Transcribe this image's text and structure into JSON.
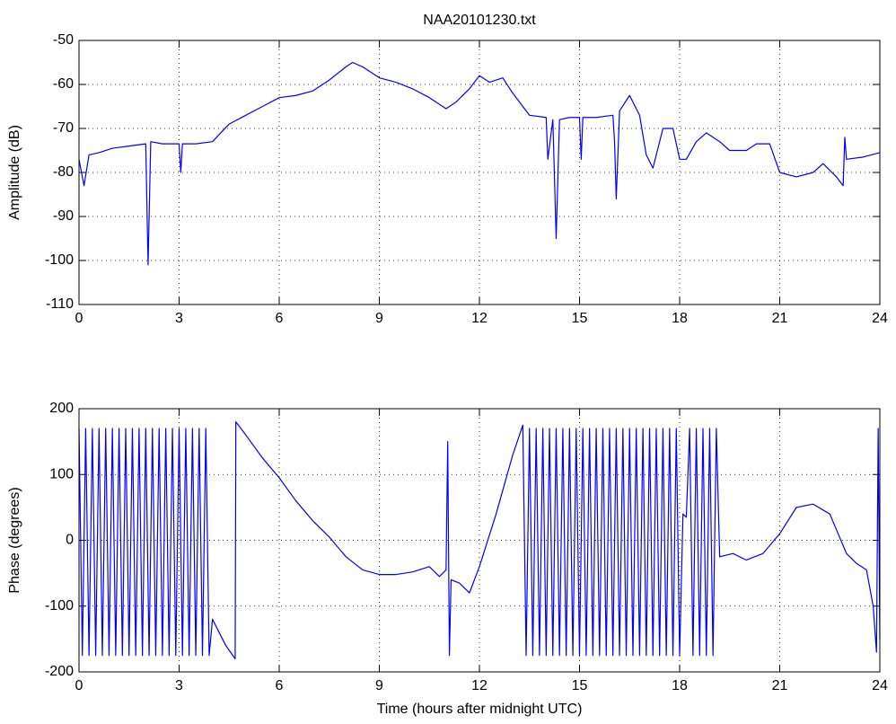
{
  "chart_data": [
    {
      "type": "line",
      "title": "NAA20101230.txt",
      "y_label": "Amplitude (dB)",
      "color": "#0000ff",
      "grid": true,
      "xlim": [
        0,
        24
      ],
      "xticks": [
        0,
        3,
        6,
        9,
        12,
        15,
        18,
        21,
        24
      ],
      "ylim": [
        -110,
        -50
      ],
      "yticks": [
        -110,
        -100,
        -90,
        -80,
        -70,
        -60,
        -50
      ],
      "x": [
        0,
        0.15,
        0.3,
        0.6,
        1.0,
        1.5,
        2.0,
        2.07,
        2.15,
        2.5,
        3.0,
        3.05,
        3.1,
        3.5,
        4.0,
        4.5,
        5.0,
        5.5,
        6.0,
        6.5,
        7.0,
        7.5,
        8.0,
        8.2,
        8.5,
        9.0,
        9.5,
        10.0,
        10.5,
        11.0,
        11.3,
        11.7,
        12.0,
        12.3,
        12.7,
        13.0,
        13.5,
        14.0,
        14.05,
        14.2,
        14.3,
        14.4,
        14.7,
        15.0,
        15.05,
        15.1,
        15.5,
        16.0,
        16.05,
        16.1,
        16.2,
        16.5,
        16.8,
        17.0,
        17.2,
        17.5,
        17.8,
        18.0,
        18.2,
        18.5,
        18.8,
        19.2,
        19.5,
        20.0,
        20.3,
        20.7,
        21.0,
        21.5,
        22.0,
        22.3,
        22.7,
        22.9,
        22.95,
        23.0,
        23.5,
        24
      ],
      "values": [
        -77,
        -83,
        -76,
        -75.5,
        -74.5,
        -74,
        -73.5,
        -101,
        -73,
        -73.5,
        -73.5,
        -80,
        -73.5,
        -73.5,
        -73,
        -69,
        -67,
        -65,
        -63,
        -62.5,
        -61.5,
        -59,
        -56,
        -55,
        -56,
        -58.5,
        -59.5,
        -61,
        -63,
        -65.5,
        -64,
        -61,
        -58,
        -59.5,
        -58.5,
        -62,
        -67,
        -67.5,
        -77,
        -68,
        -95,
        -68,
        -67.5,
        -67.5,
        -77,
        -67.5,
        -67.5,
        -67,
        -73,
        -86,
        -66,
        -62.5,
        -67,
        -76,
        -79,
        -70,
        -70,
        -77,
        -77,
        -73,
        -71,
        -73,
        -75,
        -75,
        -73.5,
        -73.5,
        -80,
        -81,
        -80,
        -78,
        -81,
        -83,
        -72,
        -77,
        -76.5,
        -75.5
      ]
    },
    {
      "type": "line",
      "x_label": "Time (hours after midnight UTC)",
      "y_label": "Phase (degrees)",
      "color": "#0000ff",
      "grid": true,
      "xlim": [
        0,
        24
      ],
      "xticks": [
        0,
        3,
        6,
        9,
        12,
        15,
        18,
        21,
        24
      ],
      "ylim": [
        -200,
        200
      ],
      "yticks": [
        -200,
        -100,
        0,
        100,
        200
      ],
      "x": [
        0,
        0.1,
        0.2,
        0.3,
        0.4,
        0.5,
        0.6,
        0.7,
        0.8,
        0.9,
        1.0,
        1.1,
        1.2,
        1.3,
        1.4,
        1.5,
        1.6,
        1.7,
        1.8,
        1.9,
        2.0,
        2.1,
        2.2,
        2.3,
        2.4,
        2.5,
        2.6,
        2.7,
        2.8,
        2.9,
        3.0,
        3.1,
        3.2,
        3.3,
        3.4,
        3.5,
        3.6,
        3.7,
        3.8,
        3.9,
        4.0,
        4.2,
        4.4,
        4.68,
        4.7,
        5.0,
        5.5,
        6.0,
        6.5,
        7.0,
        7.5,
        8.0,
        8.5,
        9.0,
        9.5,
        10.0,
        10.5,
        10.8,
        11.0,
        11.05,
        11.1,
        11.15,
        11.4,
        11.7,
        12.0,
        12.5,
        13.0,
        13.3,
        13.4,
        13.5,
        13.6,
        13.7,
        13.8,
        13.9,
        14.0,
        14.1,
        14.2,
        14.3,
        14.4,
        14.5,
        14.6,
        14.7,
        14.8,
        14.9,
        15.0,
        15.1,
        15.2,
        15.3,
        15.4,
        15.5,
        15.6,
        15.7,
        15.8,
        15.9,
        16.0,
        16.1,
        16.2,
        16.3,
        16.4,
        16.5,
        16.6,
        16.7,
        16.8,
        16.9,
        17.0,
        17.1,
        17.2,
        17.3,
        17.4,
        17.5,
        17.6,
        17.7,
        17.8,
        17.9,
        18.0,
        18.1,
        18.2,
        18.3,
        18.4,
        18.5,
        18.6,
        18.7,
        18.8,
        18.9,
        19.0,
        19.1,
        19.2,
        19.6,
        20.0,
        20.5,
        21.0,
        21.5,
        22.0,
        22.5,
        23.0,
        23.3,
        23.6,
        23.8,
        23.9,
        23.95,
        24
      ],
      "values": [
        170,
        -175,
        170,
        -175,
        170,
        -175,
        170,
        -175,
        170,
        -175,
        170,
        -175,
        170,
        -175,
        170,
        -175,
        170,
        -175,
        170,
        -175,
        170,
        -175,
        170,
        -175,
        170,
        -175,
        170,
        -175,
        170,
        -175,
        170,
        -175,
        170,
        -175,
        170,
        -175,
        170,
        -175,
        170,
        -175,
        -120,
        -140,
        -160,
        -180,
        180,
        160,
        125,
        95,
        60,
        30,
        5,
        -25,
        -45,
        -52,
        -52,
        -48,
        -40,
        -55,
        -45,
        150,
        -175,
        -60,
        -65,
        -80,
        -40,
        40,
        130,
        175,
        -175,
        170,
        -175,
        170,
        -175,
        170,
        -175,
        170,
        -175,
        170,
        -175,
        170,
        -175,
        170,
        -175,
        170,
        -175,
        170,
        -175,
        170,
        -175,
        170,
        -175,
        170,
        -175,
        170,
        -175,
        170,
        -175,
        170,
        -175,
        170,
        -175,
        170,
        -175,
        170,
        -175,
        170,
        -175,
        170,
        -175,
        170,
        -175,
        170,
        -175,
        170,
        -175,
        40,
        35,
        170,
        -175,
        170,
        -175,
        170,
        -175,
        170,
        -175,
        170,
        -25,
        -20,
        -30,
        -20,
        10,
        50,
        55,
        40,
        -20,
        -35,
        -45,
        -100,
        -170,
        170,
        -150
      ]
    }
  ]
}
